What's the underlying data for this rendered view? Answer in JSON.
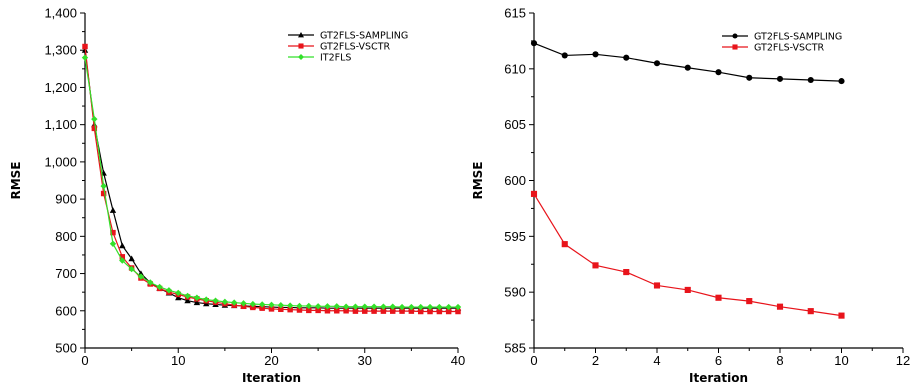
{
  "chart_data": [
    {
      "type": "line",
      "title": "",
      "xlabel": "Iteration",
      "ylabel": "RMSE",
      "xlim": [
        0,
        40
      ],
      "ylim": [
        500,
        1400
      ],
      "xticks": [
        0,
        10,
        20,
        30,
        40
      ],
      "xtick_labels": [
        "0",
        "10",
        "20",
        "30",
        "40"
      ],
      "yticks": [
        500,
        600,
        700,
        800,
        900,
        1000,
        1100,
        1200,
        1300,
        1400
      ],
      "ytick_labels": [
        "500",
        "600",
        "700",
        "800",
        "900",
        "1,000",
        "1,100",
        "1,200",
        "1,300",
        "1,400"
      ],
      "grid": false,
      "legend_position": "top-right",
      "series": [
        {
          "name": "GT2FLS-SAMPLING",
          "color": "#000000",
          "marker": "triangle",
          "x": [
            0,
            1,
            2,
            3,
            4,
            5,
            6,
            7,
            8,
            9,
            10,
            11,
            12,
            13,
            14,
            15,
            16,
            17,
            18,
            19,
            20,
            21,
            22,
            23,
            24,
            25,
            26,
            27,
            28,
            29,
            30,
            31,
            32,
            33,
            34,
            35,
            36,
            37,
            38,
            39,
            40
          ],
          "values": [
            1300,
            1100,
            970,
            870,
            775,
            740,
            700,
            675,
            660,
            648,
            635,
            627,
            622,
            619,
            617,
            615,
            614,
            613,
            612,
            611,
            610,
            609,
            609,
            608,
            608,
            608,
            607,
            607,
            607,
            607,
            607,
            607,
            607,
            607,
            607,
            607,
            607,
            607,
            607,
            607,
            607
          ]
        },
        {
          "name": "GT2FLS-VSCTR",
          "color": "#e8141b",
          "marker": "square",
          "x": [
            0,
            1,
            2,
            3,
            4,
            5,
            6,
            7,
            8,
            9,
            10,
            11,
            12,
            13,
            14,
            15,
            16,
            17,
            18,
            19,
            20,
            21,
            22,
            23,
            24,
            25,
            26,
            27,
            28,
            29,
            30,
            31,
            32,
            33,
            34,
            35,
            36,
            37,
            38,
            39,
            40
          ],
          "values": [
            1310,
            1090,
            915,
            810,
            745,
            715,
            688,
            672,
            660,
            650,
            644,
            637,
            632,
            627,
            623,
            619,
            615,
            612,
            609,
            607,
            605,
            604,
            603,
            602,
            601,
            601,
            600,
            600,
            600,
            599,
            599,
            599,
            599,
            599,
            599,
            599,
            598,
            598,
            598,
            598,
            598
          ]
        },
        {
          "name": "IT2FLS",
          "color": "#33e02a",
          "marker": "diamond",
          "x": [
            0,
            1,
            2,
            3,
            4,
            5,
            6,
            7,
            8,
            9,
            10,
            11,
            12,
            13,
            14,
            15,
            16,
            17,
            18,
            19,
            20,
            21,
            22,
            23,
            24,
            25,
            26,
            27,
            28,
            29,
            30,
            31,
            32,
            33,
            34,
            35,
            36,
            37,
            38,
            39,
            40
          ],
          "values": [
            1280,
            1115,
            935,
            780,
            735,
            712,
            692,
            676,
            664,
            655,
            648,
            640,
            635,
            630,
            627,
            624,
            622,
            620,
            618,
            617,
            616,
            615,
            614,
            613,
            613,
            612,
            612,
            612,
            611,
            611,
            611,
            611,
            611,
            611,
            610,
            610,
            610,
            610,
            610,
            610,
            610
          ]
        }
      ]
    },
    {
      "type": "line",
      "title": "",
      "xlabel": "Iteration",
      "ylabel": "RMSE",
      "xlim": [
        0,
        12
      ],
      "ylim": [
        585,
        615
      ],
      "xticks": [
        0,
        2,
        4,
        6,
        8,
        10,
        12
      ],
      "xtick_labels": [
        "0",
        "2",
        "4",
        "6",
        "8",
        "10",
        "12"
      ],
      "yticks": [
        585,
        590,
        595,
        600,
        605,
        610,
        615
      ],
      "ytick_labels": [
        "585",
        "590",
        "595",
        "600",
        "605",
        "610",
        "615"
      ],
      "grid": false,
      "legend_position": "top-right",
      "series": [
        {
          "name": "GT2FLS-SAMPLING",
          "color": "#000000",
          "marker": "circle",
          "x": [
            0,
            1,
            2,
            3,
            4,
            5,
            6,
            7,
            8,
            9,
            10
          ],
          "values": [
            612.3,
            611.2,
            611.3,
            611.0,
            610.5,
            610.1,
            609.7,
            609.2,
            609.1,
            609.0,
            608.9
          ]
        },
        {
          "name": "GT2FLS-VSCTR",
          "color": "#e8141b",
          "marker": "square",
          "x": [
            0,
            1,
            2,
            3,
            4,
            5,
            6,
            7,
            8,
            9,
            10
          ],
          "values": [
            598.8,
            594.3,
            592.4,
            591.8,
            590.6,
            590.2,
            589.5,
            589.2,
            588.7,
            588.3,
            587.9
          ]
        }
      ]
    }
  ]
}
